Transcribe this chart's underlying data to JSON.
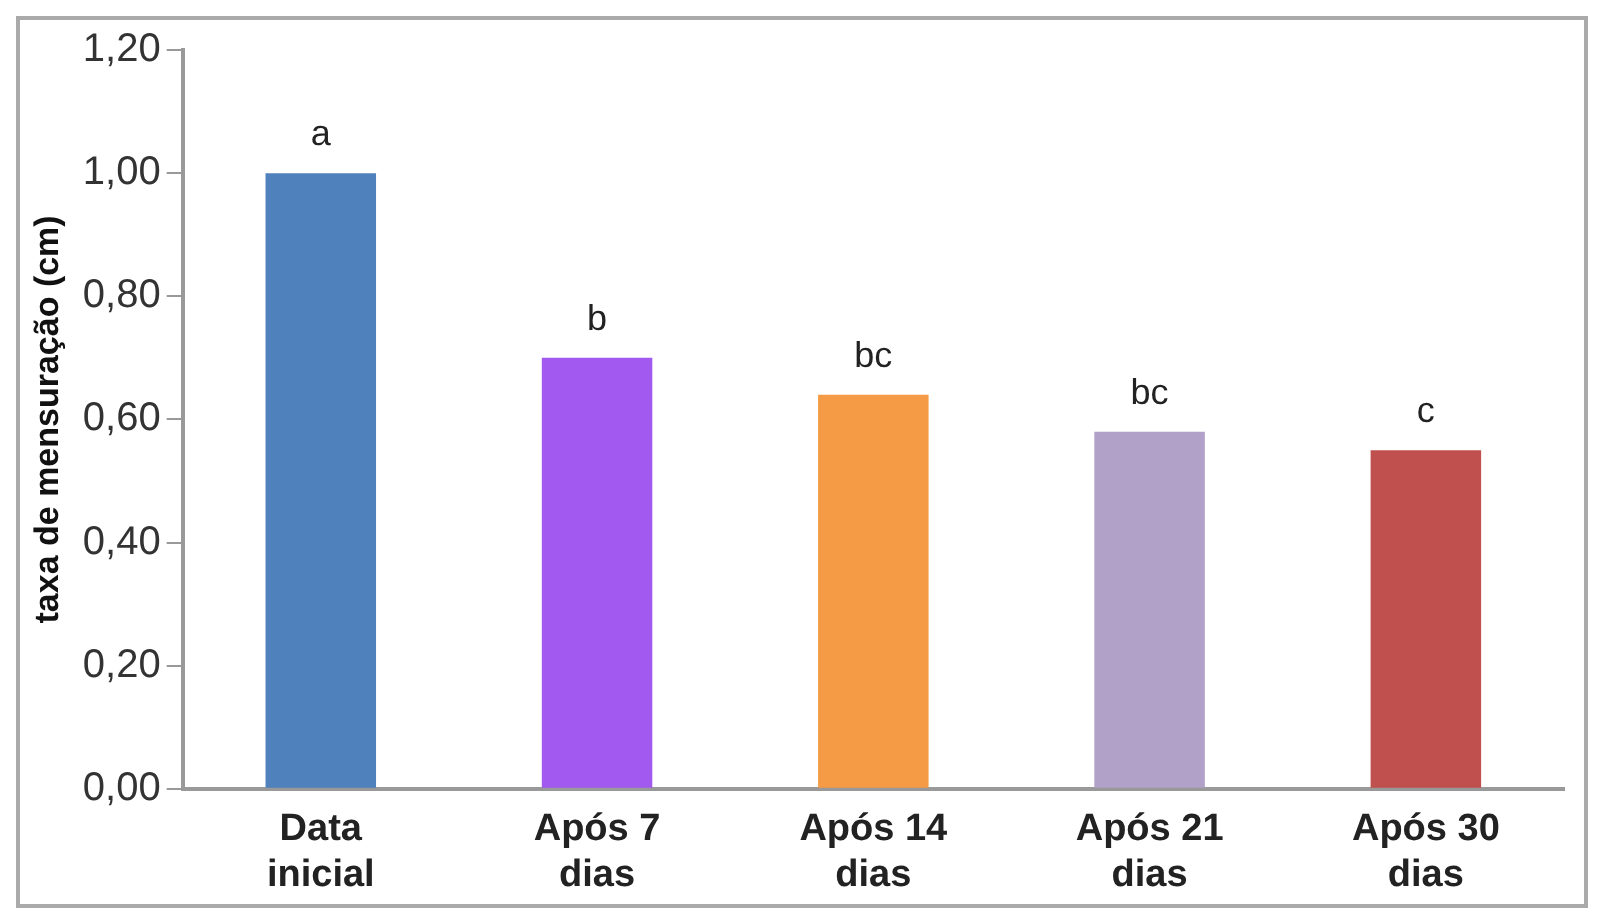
{
  "chart_data": {
    "type": "bar",
    "ylabel": "taxa de mensuração (cm)",
    "categories": [
      "Data inicial",
      "Após 7 dias",
      "Após 14 dias",
      "Após 21 dias",
      "Após 30 dias"
    ],
    "values": [
      1.0,
      0.7,
      0.64,
      0.58,
      0.55
    ],
    "colors": [
      "#4f81bd",
      "#a259f0",
      "#f59a45",
      "#b1a0c7",
      "#c0504d"
    ],
    "ylim": [
      0,
      1.2
    ],
    "yticks": [
      {
        "value": 0,
        "label": "0,00"
      },
      {
        "value": 0.2,
        "label": "0,20"
      },
      {
        "value": 0.4,
        "label": "0,40"
      },
      {
        "value": 0.6,
        "label": "0,60"
      },
      {
        "value": 0.8,
        "label": "0,80"
      },
      {
        "value": 1.0,
        "label": "1,00"
      },
      {
        "value": 1.2,
        "label": "1,20"
      }
    ],
    "grid": false,
    "legend": false,
    "annotations": [
      {
        "text": "a",
        "x": "Data inicial",
        "y": 1.0
      },
      {
        "text": "b",
        "x": "Após 7 dias",
        "y": 0.7
      },
      {
        "text": "bc",
        "x": "Após 14 dias",
        "y": 0.64
      },
      {
        "text": "bc",
        "x": "Após 21 dias",
        "y": 0.58
      },
      {
        "text": "c",
        "x": "Após 30 dias",
        "y": 0.55
      }
    ]
  }
}
